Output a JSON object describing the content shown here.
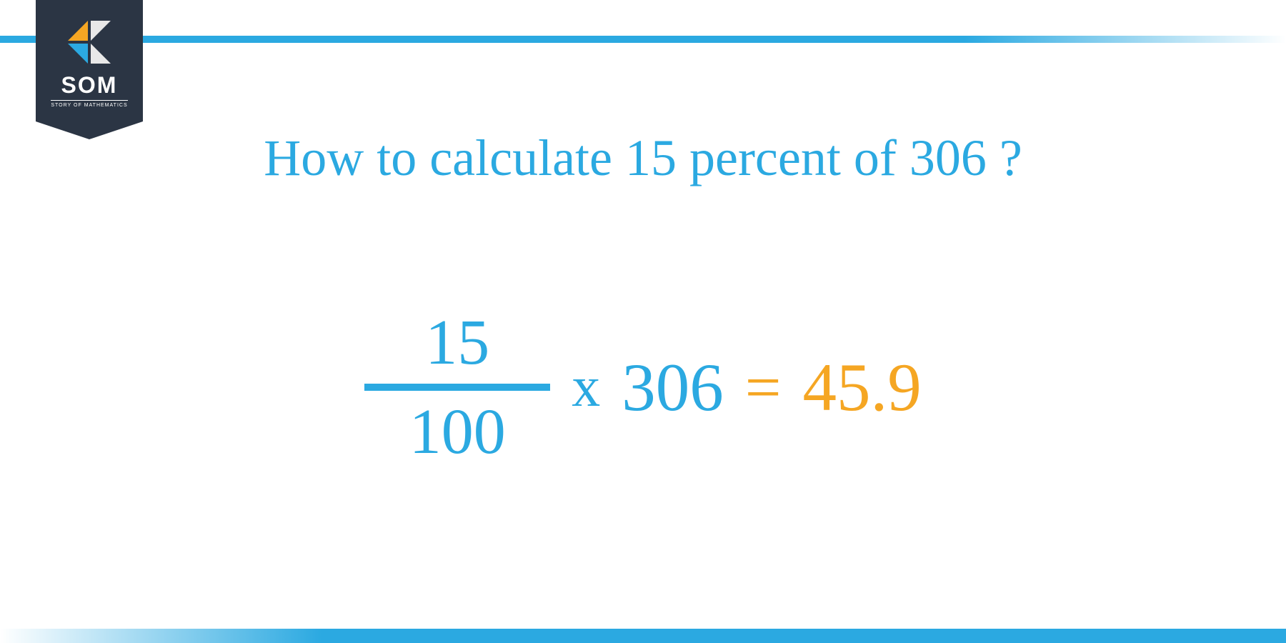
{
  "logo": {
    "text": "SOM",
    "subtext": "STORY OF MATHEMATICS",
    "badge_bg": "#2b3544",
    "icon_colors": {
      "tl": "#f5a623",
      "tr": "#e8e8e8",
      "bl": "#2ba9e1",
      "br": "#e8e8e8"
    }
  },
  "title": {
    "text": "How to calculate 15 percent of 306 ?",
    "color": "#2ba9e1",
    "fontsize": 72
  },
  "equation": {
    "numerator": "15",
    "denominator": "100",
    "times": "x",
    "operand": "306",
    "equals": "=",
    "result": "45.9",
    "fraction_color": "#2ba9e1",
    "fraction_line_color": "#2ba9e1",
    "operand_color": "#2ba9e1",
    "result_color": "#f5a623",
    "equals_color": "#f5a623"
  },
  "borders": {
    "accent_color": "#2ba9e1"
  },
  "background_color": "#ffffff"
}
